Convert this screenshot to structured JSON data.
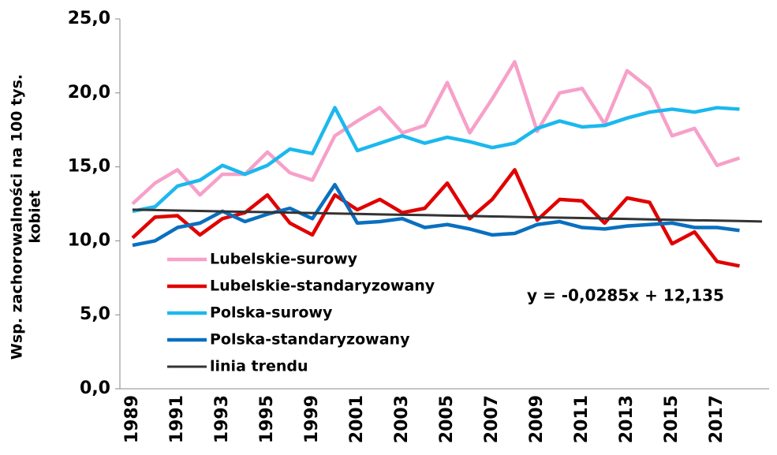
{
  "chart_data": {
    "type": "line",
    "y_label_lines": [
      "Wsp. zachorowalności na 100 tys.",
      "kobiet"
    ],
    "annotation": "y = -0,0285x + 12,135",
    "categories": [
      "1989",
      null,
      "1991",
      null,
      "1993",
      null,
      "1995",
      null,
      "1999",
      null,
      "2001",
      null,
      "2003",
      null,
      "2005",
      null,
      "2007",
      null,
      "2009",
      null,
      "2011",
      null,
      "2013",
      null,
      "2015",
      null,
      "2017",
      null,
      null
    ],
    "series": [
      {
        "name": "Lubelskie-surowy",
        "color": "#f7a0c9",
        "values": [
          12.5,
          13.9,
          14.8,
          13.1,
          14.5,
          14.5,
          16.0,
          14.6,
          14.1,
          17.1,
          18.1,
          19.0,
          17.3,
          17.8,
          20.7,
          17.3,
          19.6,
          22.1,
          17.4,
          20.0,
          20.3,
          17.9,
          21.5,
          20.3,
          17.1,
          17.6,
          15.1,
          15.6,
          null
        ]
      },
      {
        "name": "Lubelskie-standaryzowany",
        "color": "#e00000",
        "values": [
          10.2,
          11.6,
          11.7,
          10.4,
          11.5,
          11.9,
          13.1,
          11.2,
          10.4,
          13.1,
          12.1,
          12.8,
          11.9,
          12.2,
          13.9,
          11.5,
          12.8,
          14.8,
          11.4,
          12.8,
          12.7,
          11.2,
          12.9,
          12.6,
          9.8,
          10.6,
          8.6,
          8.3,
          null
        ]
      },
      {
        "name": "Polska-surowy",
        "color": "#1cb8ee",
        "values": [
          12.0,
          12.3,
          13.7,
          14.1,
          15.1,
          14.5,
          15.1,
          16.2,
          15.9,
          19.0,
          16.1,
          16.6,
          17.1,
          16.6,
          17.0,
          16.7,
          16.3,
          16.6,
          17.6,
          18.1,
          17.7,
          17.8,
          18.3,
          18.7,
          18.9,
          18.7,
          19.0,
          18.9,
          null
        ]
      },
      {
        "name": "Polska-standaryzowany",
        "color": "#0a6fbf",
        "values": [
          9.7,
          10.0,
          10.9,
          11.2,
          12.0,
          11.3,
          11.8,
          12.2,
          11.5,
          13.8,
          11.2,
          11.3,
          11.5,
          10.9,
          11.1,
          10.8,
          10.4,
          10.5,
          11.1,
          11.3,
          10.9,
          10.8,
          11.0,
          11.1,
          11.2,
          10.9,
          10.9,
          10.7,
          null
        ]
      },
      {
        "name": "linia trendu",
        "color": "#333333",
        "values": [
          12.11,
          12.08,
          12.05,
          12.02,
          11.99,
          11.96,
          11.94,
          11.91,
          11.88,
          11.85,
          11.82,
          11.79,
          11.76,
          11.74,
          11.71,
          11.68,
          11.65,
          11.62,
          11.59,
          11.57,
          11.54,
          11.51,
          11.48,
          11.45,
          11.42,
          11.39,
          11.37,
          11.34,
          11.31
        ]
      }
    ],
    "ylim": [
      0,
      25
    ],
    "yticks": [
      {
        "value": 0,
        "label": "0,0"
      },
      {
        "value": 5,
        "label": "5,0"
      },
      {
        "value": 10,
        "label": "10,0"
      },
      {
        "value": 15,
        "label": "15,0"
      },
      {
        "value": 20,
        "label": "20,0"
      },
      {
        "value": 25,
        "label": "25,0"
      }
    ],
    "grid": false
  }
}
